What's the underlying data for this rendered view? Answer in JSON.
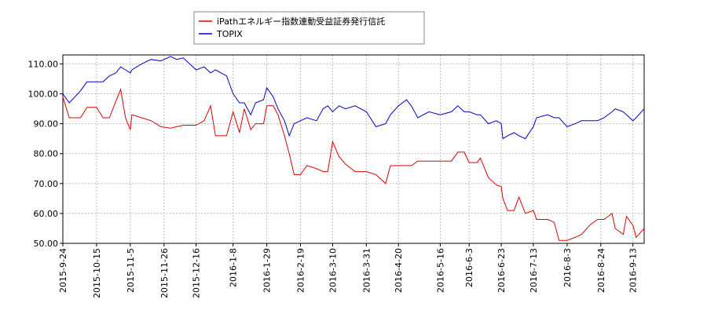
{
  "chart_data": {
    "type": "line",
    "x": [
      "2015-9-24",
      "2015-9-28",
      "2015-10-5",
      "2015-10-9",
      "2015-10-15",
      "2015-10-19",
      "2015-10-23",
      "2015-10-27",
      "2015-10-30",
      "2015-11-2",
      "2015-11-5",
      "2015-11-6",
      "2015-11-12",
      "2015-11-18",
      "2015-11-24",
      "2015-11-30",
      "2015-12-4",
      "2015-12-8",
      "2015-12-14",
      "2015-12-16",
      "2015-12-21",
      "2015-12-25",
      "2015-12-28",
      "2016-1-4",
      "2016-1-8",
      "2016-1-12",
      "2016-1-15",
      "2016-1-19",
      "2016-1-22",
      "2016-1-27",
      "2016-1-29",
      "2016-2-2",
      "2016-2-5",
      "2016-2-9",
      "2016-2-12",
      "2016-2-15",
      "2016-2-19",
      "2016-2-23",
      "2016-2-29",
      "2016-3-4",
      "2016-3-7",
      "2016-3-10",
      "2016-3-14",
      "2016-3-18",
      "2016-3-24",
      "2016-3-31",
      "2016-4-6",
      "2016-4-12",
      "2016-4-15",
      "2016-4-20",
      "2016-4-25",
      "2016-4-28",
      "2016-5-2",
      "2016-5-9",
      "2016-5-16",
      "2016-5-23",
      "2016-5-27",
      "2016-5-31",
      "2016-6-3",
      "2016-6-8",
      "2016-6-10",
      "2016-6-15",
      "2016-6-20",
      "2016-6-23",
      "2016-6-24",
      "2016-6-27",
      "2016-7-1",
      "2016-7-4",
      "2016-7-8",
      "2016-7-13",
      "2016-7-15",
      "2016-7-22",
      "2016-7-26",
      "2016-7-29",
      "2016-8-3",
      "2016-8-8",
      "2016-8-12",
      "2016-8-17",
      "2016-8-22",
      "2016-8-26",
      "2016-8-31",
      "2016-9-2",
      "2016-9-7",
      "2016-9-9",
      "2016-9-13",
      "2016-9-15",
      "2016-9-20"
    ],
    "series": [
      {
        "name": "iPathエネルギー指数連動受益証券発行信託",
        "color": "#dd0000",
        "values": [
          99,
          92,
          92,
          95.5,
          95.5,
          92,
          92,
          97.5,
          101.5,
          92,
          88,
          93,
          92,
          91,
          89,
          88.5,
          89,
          89.5,
          89.5,
          89.5,
          91,
          96,
          86,
          86,
          94,
          87,
          95,
          88,
          90,
          90,
          96,
          96,
          93,
          86,
          80,
          73,
          73,
          76,
          75,
          74,
          74,
          84,
          79,
          76.5,
          74,
          74,
          73,
          70,
          76,
          76,
          76,
          76,
          77.5,
          77.5,
          77.5,
          77.5,
          80.5,
          80.5,
          77,
          77,
          78.5,
          72,
          69.5,
          69,
          65,
          61,
          61,
          65.5,
          60,
          61,
          58,
          58,
          57,
          51,
          51,
          52,
          53,
          56,
          58,
          58,
          60,
          55,
          53,
          59,
          56,
          52,
          55
        ]
      },
      {
        "name": "TOPIX",
        "color": "#0000cc",
        "values": [
          100,
          97,
          101,
          104,
          104,
          104,
          106,
          107,
          109,
          108,
          107,
          108,
          110,
          111.5,
          111,
          112.5,
          111.5,
          112,
          109,
          108,
          109,
          107,
          108,
          106,
          100,
          97,
          97,
          93,
          97,
          98,
          102,
          99,
          95,
          91,
          86,
          90,
          91,
          92,
          91,
          95,
          96,
          94,
          96,
          95,
          96,
          94,
          89,
          90,
          93,
          96,
          98,
          96,
          92,
          94,
          93,
          94,
          96,
          94,
          94,
          93,
          93,
          90,
          91,
          90,
          85,
          86,
          87,
          86,
          85,
          89,
          92,
          93,
          92,
          92,
          89,
          90,
          91,
          91,
          91,
          92,
          94,
          95,
          94,
          93,
          91,
          92,
          95
        ]
      }
    ],
    "xlim": [
      "2015-9-24",
      "2016-9-20"
    ],
    "xticks": [
      "2015-9-24",
      "2015-10-15",
      "2015-11-5",
      "2015-11-26",
      "2015-12-16",
      "2016-1-8",
      "2016-1-29",
      "2016-2-19",
      "2016-3-10",
      "2016-3-31",
      "2016-4-20",
      "2016-5-16",
      "2016-6-3",
      "2016-6-23",
      "2016-7-13",
      "2016-8-3",
      "2016-8-24",
      "2016-9-13"
    ],
    "ylim": [
      50,
      113
    ],
    "yticks": [
      {
        "value": 50,
        "label": "50.00"
      },
      {
        "value": 60,
        "label": "60.00"
      },
      {
        "value": 70,
        "label": "70.00"
      },
      {
        "value": 80,
        "label": "80.00"
      },
      {
        "value": 90,
        "label": "90.00"
      },
      {
        "value": 100,
        "label": "100.00"
      },
      {
        "value": 110,
        "label": "110.00"
      }
    ],
    "grid": true
  }
}
